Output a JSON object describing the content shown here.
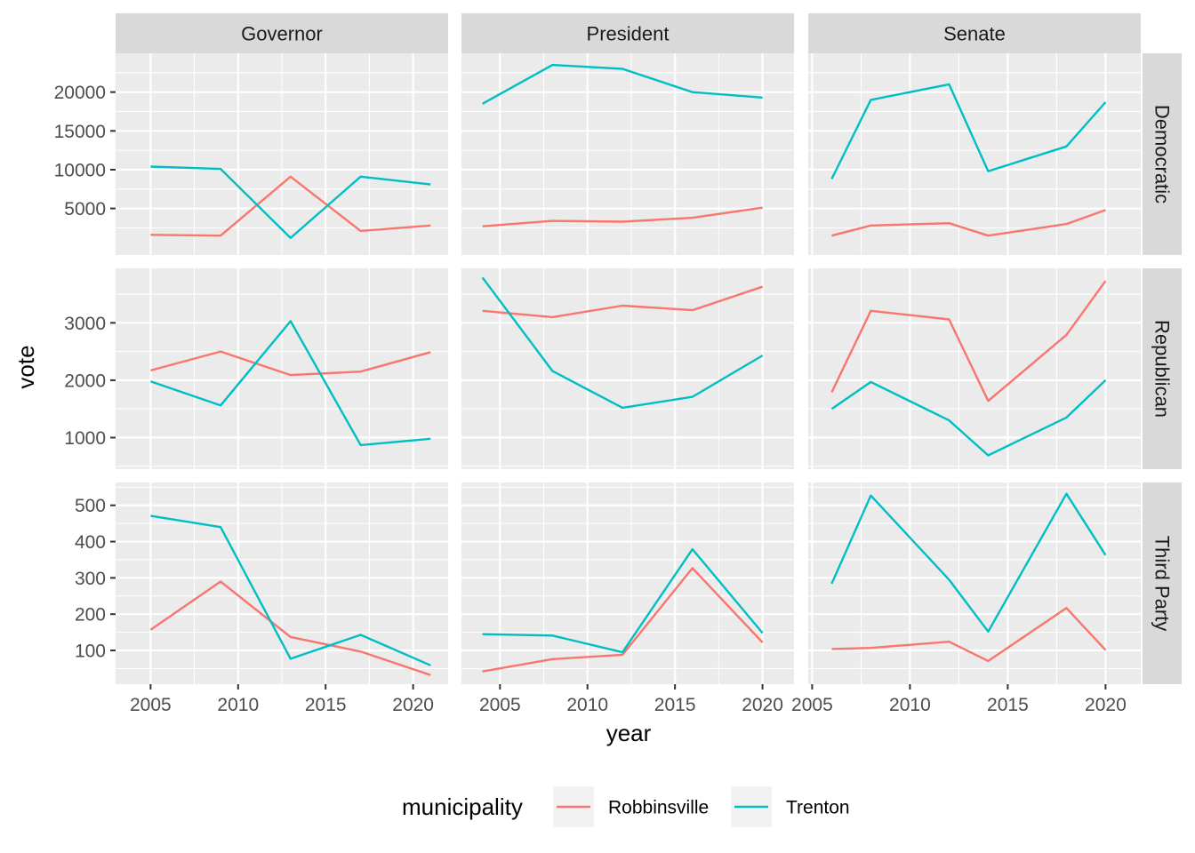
{
  "chart_data": {
    "type": "line",
    "xlabel": "year",
    "ylabel": "vote",
    "legend": {
      "title": "municipality",
      "position": "bottom",
      "entries": [
        {
          "name": "Robbinsville",
          "color": "#F8766D"
        },
        {
          "name": "Trenton",
          "color": "#00BFC4"
        }
      ]
    },
    "facet_columns": [
      "Governor",
      "President",
      "Senate"
    ],
    "facet_rows": [
      "Democratic",
      "Republican",
      "Third Party"
    ],
    "x_ranges": {
      "Governor": [
        2003.0,
        2022.0
      ],
      "President": [
        2002.8,
        2021.8
      ],
      "Senate": [
        2004.8,
        2021.8
      ]
    },
    "x_ticks": [
      2005,
      2010,
      2015,
      2020
    ],
    "y_ranges": {
      "Democratic": [
        -1000,
        25000
      ],
      "Republican": [
        450,
        3950
      ],
      "Third Party": [
        7,
        563
      ]
    },
    "y_ticks": {
      "Democratic": [
        5000,
        10000,
        15000,
        20000
      ],
      "Republican": [
        1000,
        2000,
        3000
      ],
      "Third Party": [
        100,
        200,
        300,
        400,
        500
      ]
    },
    "grid": true,
    "panels": [
      {
        "column": "Governor",
        "row": "Democratic",
        "series": [
          {
            "name": "Robbinsville",
            "x": [
              2005,
              2009,
              2013,
              2017,
              2021
            ],
            "y": [
              1600,
              1500,
              9100,
              2100,
              2800
            ]
          },
          {
            "name": "Trenton",
            "x": [
              2005,
              2009,
              2013,
              2017,
              2021
            ],
            "y": [
              10400,
              10100,
              1200,
              9100,
              8100
            ]
          }
        ]
      },
      {
        "column": "President",
        "row": "Democratic",
        "series": [
          {
            "name": "Robbinsville",
            "x": [
              2004,
              2008,
              2012,
              2016,
              2020
            ],
            "y": [
              2700,
              3400,
              3300,
              3800,
              5100
            ]
          },
          {
            "name": "Trenton",
            "x": [
              2004,
              2008,
              2012,
              2016,
              2020
            ],
            "y": [
              18500,
              23500,
              23000,
              20000,
              19300
            ]
          }
        ]
      },
      {
        "column": "Senate",
        "row": "Democratic",
        "series": [
          {
            "name": "Robbinsville",
            "x": [
              2006,
              2008,
              2012,
              2014,
              2018,
              2020
            ],
            "y": [
              1500,
              2800,
              3100,
              1500,
              3000,
              4800
            ]
          },
          {
            "name": "Trenton",
            "x": [
              2006,
              2008,
              2012,
              2014,
              2018,
              2020
            ],
            "y": [
              8800,
              19000,
              21000,
              9800,
              13000,
              18700
            ]
          }
        ]
      },
      {
        "column": "Governor",
        "row": "Republican",
        "series": [
          {
            "name": "Robbinsville",
            "x": [
              2005,
              2009,
              2013,
              2017,
              2021
            ],
            "y": [
              2170,
              2500,
              2090,
              2150,
              2490
            ]
          },
          {
            "name": "Trenton",
            "x": [
              2005,
              2009,
              2013,
              2017,
              2021
            ],
            "y": [
              1980,
              1560,
              3030,
              870,
              980
            ]
          }
        ]
      },
      {
        "column": "President",
        "row": "Republican",
        "series": [
          {
            "name": "Robbinsville",
            "x": [
              2004,
              2008,
              2012,
              2016,
              2020
            ],
            "y": [
              3210,
              3100,
              3300,
              3220,
              3630
            ]
          },
          {
            "name": "Trenton",
            "x": [
              2004,
              2008,
              2012,
              2016,
              2020
            ],
            "y": [
              3790,
              2160,
              1520,
              1710,
              2430
            ]
          }
        ]
      },
      {
        "column": "Senate",
        "row": "Republican",
        "series": [
          {
            "name": "Robbinsville",
            "x": [
              2006,
              2008,
              2012,
              2014,
              2018,
              2020
            ],
            "y": [
              1790,
              3210,
              3060,
              1640,
              2790,
              3730
            ]
          },
          {
            "name": "Trenton",
            "x": [
              2006,
              2008,
              2012,
              2014,
              2018,
              2020
            ],
            "y": [
              1500,
              1970,
              1300,
              690,
              1350,
              2000
            ]
          }
        ]
      },
      {
        "column": "Governor",
        "row": "Third Party",
        "series": [
          {
            "name": "Robbinsville",
            "x": [
              2005,
              2009,
              2013,
              2017,
              2021
            ],
            "y": [
              157,
              290,
              137,
              97,
              32
            ]
          },
          {
            "name": "Trenton",
            "x": [
              2005,
              2009,
              2013,
              2017,
              2021
            ],
            "y": [
              471,
              440,
              77,
              143,
              59
            ]
          }
        ]
      },
      {
        "column": "President",
        "row": "Third Party",
        "series": [
          {
            "name": "Robbinsville",
            "x": [
              2004,
              2008,
              2012,
              2016,
              2020
            ],
            "y": [
              42,
              76,
              88,
              327,
              122
            ]
          },
          {
            "name": "Trenton",
            "x": [
              2004,
              2008,
              2012,
              2016,
              2020
            ],
            "y": [
              145,
              141,
              95,
              379,
              148
            ]
          }
        ]
      },
      {
        "column": "Senate",
        "row": "Third Party",
        "series": [
          {
            "name": "Robbinsville",
            "x": [
              2006,
              2008,
              2012,
              2014,
              2018,
              2020
            ],
            "y": [
              104,
              107,
              124,
              71,
              217,
              101
            ]
          },
          {
            "name": "Trenton",
            "x": [
              2006,
              2008,
              2012,
              2014,
              2018,
              2020
            ],
            "y": [
              284,
              527,
              295,
              152,
              532,
              363
            ]
          }
        ]
      }
    ]
  }
}
